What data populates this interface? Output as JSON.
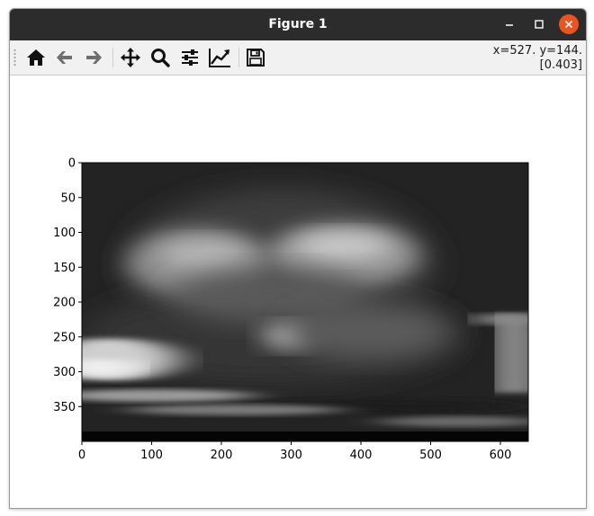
{
  "window": {
    "title": "Figure 1",
    "controls": {
      "minimize": "–",
      "maximize": "□",
      "close": "✕"
    }
  },
  "toolbar": {
    "buttons": [
      {
        "name": "home",
        "icon": "home-icon"
      },
      {
        "name": "back",
        "icon": "arrow-left-icon"
      },
      {
        "name": "forward",
        "icon": "arrow-right-icon"
      },
      {
        "name": "pan",
        "icon": "move-icon"
      },
      {
        "name": "zoom",
        "icon": "zoom-icon"
      },
      {
        "name": "configure-subplots",
        "icon": "sliders-icon"
      },
      {
        "name": "edit-axes",
        "icon": "line-chart-icon"
      },
      {
        "name": "save",
        "icon": "floppy-disk-icon"
      }
    ],
    "coords_line1": "x=527. y=144.",
    "coords_line2": "[0.403]"
  },
  "chart_data": {
    "type": "heatmap",
    "colormap": "gray",
    "image_width": 640,
    "image_height": 400,
    "xlim": [
      0,
      640
    ],
    "ylim": [
      400,
      0
    ],
    "xticks": [
      0,
      100,
      200,
      300,
      400,
      500,
      600
    ],
    "yticks": [
      0,
      50,
      100,
      150,
      200,
      250,
      300,
      350
    ],
    "cursor_value": 0.403
  }
}
